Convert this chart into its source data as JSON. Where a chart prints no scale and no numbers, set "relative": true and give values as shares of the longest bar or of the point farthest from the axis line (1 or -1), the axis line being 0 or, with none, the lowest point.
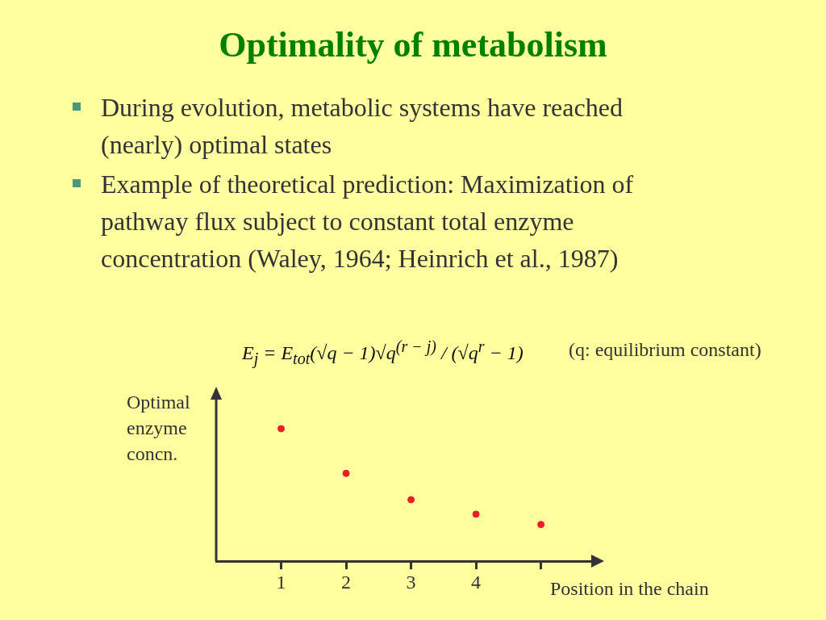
{
  "chart_data": {
    "type": "scatter",
    "title": "Optimality of metabolism",
    "annotations": [
      "During evolution, metabolic systems have reached (nearly) optimal states",
      "Example of theoretical prediction: Maximization of pathway flux subject to constant total enzyme concentration (Waley, 1964; Heinrich et al., 1987)",
      "E$_{j}$ = E$_{tot}$(√q − 1)√q$^{(r − j)}$ / (√q$^{r}$ − 1)",
      "(q: equilibrium constant)"
    ],
    "ylabel": "Optimal enzyme concn.",
    "xlabel": "Position in the chain",
    "relative": true,
    "x": [
      1,
      2,
      3,
      4,
      5
    ],
    "series": [
      {
        "color": "#e8202a",
        "values": [
          1,
          0.663,
          0.464,
          0.355,
          0.277
        ]
      }
    ],
    "xlim": [
      0,
      5.8
    ],
    "xticks": [
      1,
      2,
      3,
      4,
      {
        "value": 5,
        "label": null
      }
    ],
    "grid": false,
    "legend": false,
    "marker": "circle"
  }
}
